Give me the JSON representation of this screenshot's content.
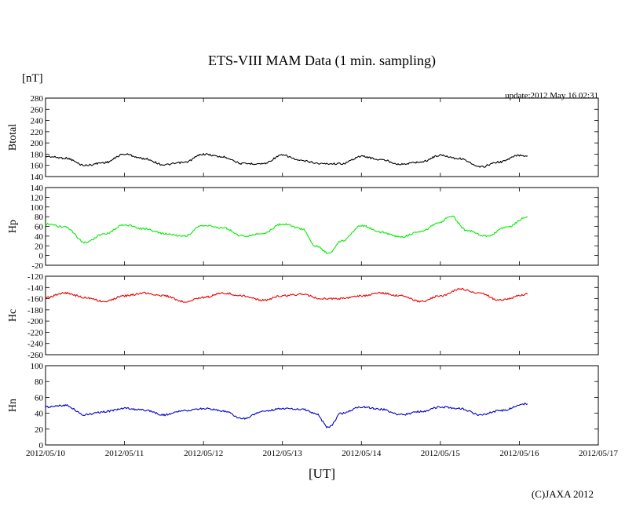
{
  "chart_data": {
    "type": "line",
    "title": "ETS-VIII MAM Data (1 min. sampling)",
    "unit": "[nT]",
    "update": "update:2012 May 16 02:31",
    "copyright": "(C)JAXA 2012",
    "xlabel": "[UT]",
    "x_ticks": [
      "2012/05/10",
      "2012/05/11",
      "2012/05/12",
      "2012/05/13",
      "2012/05/14",
      "2012/05/15",
      "2012/05/16",
      "2012/05/17"
    ],
    "xlim": [
      "2012/05/10",
      "2012/05/17"
    ],
    "data_end": "2012/05/16 02:31",
    "panels": [
      {
        "name": "Btotal",
        "color": "#000000",
        "ylim": [
          140,
          280
        ],
        "y_ticks": [
          "280",
          "260",
          "240",
          "220",
          "200",
          "180",
          "160",
          "140"
        ],
        "values": [
          {
            "t": "2012/05/10 00:00",
            "v": 176
          },
          {
            "t": "2012/05/10 06:00",
            "v": 173
          },
          {
            "t": "2012/05/10 12:00",
            "v": 160
          },
          {
            "t": "2012/05/10 18:00",
            "v": 165
          },
          {
            "t": "2012/05/11 00:00",
            "v": 180
          },
          {
            "t": "2012/05/11 06:00",
            "v": 172
          },
          {
            "t": "2012/05/11 12:00",
            "v": 161
          },
          {
            "t": "2012/05/11 18:00",
            "v": 165
          },
          {
            "t": "2012/05/12 00:00",
            "v": 180
          },
          {
            "t": "2012/05/12 06:00",
            "v": 175
          },
          {
            "t": "2012/05/12 12:00",
            "v": 163
          },
          {
            "t": "2012/05/12 18:00",
            "v": 163
          },
          {
            "t": "2012/05/13 00:00",
            "v": 178
          },
          {
            "t": "2012/05/13 06:00",
            "v": 168
          },
          {
            "t": "2012/05/13 12:00",
            "v": 163
          },
          {
            "t": "2012/05/13 18:00",
            "v": 163
          },
          {
            "t": "2012/05/14 00:00",
            "v": 176
          },
          {
            "t": "2012/05/14 06:00",
            "v": 170
          },
          {
            "t": "2012/05/14 12:00",
            "v": 162
          },
          {
            "t": "2012/05/14 18:00",
            "v": 166
          },
          {
            "t": "2012/05/15 00:00",
            "v": 178
          },
          {
            "t": "2012/05/15 06:00",
            "v": 172
          },
          {
            "t": "2012/05/15 12:00",
            "v": 157
          },
          {
            "t": "2012/05/15 18:00",
            "v": 166
          },
          {
            "t": "2012/05/16 00:00",
            "v": 178
          },
          {
            "t": "2012/05/16 02:30",
            "v": 177
          }
        ]
      },
      {
        "name": "Hp",
        "color": "#00ee00",
        "ylim": [
          -20,
          140
        ],
        "y_ticks": [
          "140",
          "120",
          "100",
          "80",
          "60",
          "40",
          "20",
          "0",
          "-20"
        ],
        "values": [
          {
            "t": "2012/05/10 00:00",
            "v": 65
          },
          {
            "t": "2012/05/10 06:00",
            "v": 58
          },
          {
            "t": "2012/05/10 12:00",
            "v": 27
          },
          {
            "t": "2012/05/10 18:00",
            "v": 45
          },
          {
            "t": "2012/05/11 00:00",
            "v": 63
          },
          {
            "t": "2012/05/11 06:00",
            "v": 55
          },
          {
            "t": "2012/05/11 12:00",
            "v": 45
          },
          {
            "t": "2012/05/11 18:00",
            "v": 40
          },
          {
            "t": "2012/05/12 00:00",
            "v": 62
          },
          {
            "t": "2012/05/12 06:00",
            "v": 57
          },
          {
            "t": "2012/05/12 12:00",
            "v": 40
          },
          {
            "t": "2012/05/12 18:00",
            "v": 45
          },
          {
            "t": "2012/05/13 00:00",
            "v": 65
          },
          {
            "t": "2012/05/13 06:00",
            "v": 55
          },
          {
            "t": "2012/05/13 10:00",
            "v": 20
          },
          {
            "t": "2012/05/13 14:00",
            "v": 5
          },
          {
            "t": "2012/05/13 18:00",
            "v": 30
          },
          {
            "t": "2012/05/14 00:00",
            "v": 62
          },
          {
            "t": "2012/05/14 06:00",
            "v": 48
          },
          {
            "t": "2012/05/14 12:00",
            "v": 38
          },
          {
            "t": "2012/05/14 18:00",
            "v": 50
          },
          {
            "t": "2012/05/15 00:00",
            "v": 68
          },
          {
            "t": "2012/05/15 03:00",
            "v": 82
          },
          {
            "t": "2012/05/15 08:00",
            "v": 52
          },
          {
            "t": "2012/05/15 14:00",
            "v": 40
          },
          {
            "t": "2012/05/15 20:00",
            "v": 58
          },
          {
            "t": "2012/05/16 02:30",
            "v": 80
          }
        ]
      },
      {
        "name": "Hc",
        "color": "#ee0000",
        "ylim": [
          -260,
          -120
        ],
        "y_ticks": [
          "-120",
          "-140",
          "-160",
          "-180",
          "-200",
          "-220",
          "-240",
          "-260"
        ],
        "values": [
          {
            "t": "2012/05/10 00:00",
            "v": -158
          },
          {
            "t": "2012/05/10 06:00",
            "v": -150
          },
          {
            "t": "2012/05/10 12:00",
            "v": -158
          },
          {
            "t": "2012/05/10 18:00",
            "v": -165
          },
          {
            "t": "2012/05/11 00:00",
            "v": -155
          },
          {
            "t": "2012/05/11 06:00",
            "v": -150
          },
          {
            "t": "2012/05/11 12:00",
            "v": -155
          },
          {
            "t": "2012/05/11 18:00",
            "v": -165
          },
          {
            "t": "2012/05/12 00:00",
            "v": -158
          },
          {
            "t": "2012/05/12 06:00",
            "v": -150
          },
          {
            "t": "2012/05/12 12:00",
            "v": -155
          },
          {
            "t": "2012/05/12 18:00",
            "v": -163
          },
          {
            "t": "2012/05/13 00:00",
            "v": -155
          },
          {
            "t": "2012/05/13 06:00",
            "v": -152
          },
          {
            "t": "2012/05/13 12:00",
            "v": -160
          },
          {
            "t": "2012/05/13 18:00",
            "v": -160
          },
          {
            "t": "2012/05/14 00:00",
            "v": -155
          },
          {
            "t": "2012/05/14 06:00",
            "v": -150
          },
          {
            "t": "2012/05/14 12:00",
            "v": -155
          },
          {
            "t": "2012/05/14 18:00",
            "v": -165
          },
          {
            "t": "2012/05/15 00:00",
            "v": -155
          },
          {
            "t": "2012/05/15 06:00",
            "v": -143
          },
          {
            "t": "2012/05/15 12:00",
            "v": -150
          },
          {
            "t": "2012/05/15 18:00",
            "v": -163
          },
          {
            "t": "2012/05/16 02:30",
            "v": -152
          }
        ]
      },
      {
        "name": "Hn",
        "color": "#0000cc",
        "ylim": [
          0,
          100
        ],
        "y_ticks": [
          "100",
          "80",
          "60",
          "40",
          "20",
          "0"
        ],
        "values": [
          {
            "t": "2012/05/10 00:00",
            "v": 48
          },
          {
            "t": "2012/05/10 06:00",
            "v": 50
          },
          {
            "t": "2012/05/10 12:00",
            "v": 38
          },
          {
            "t": "2012/05/10 18:00",
            "v": 42
          },
          {
            "t": "2012/05/11 00:00",
            "v": 46
          },
          {
            "t": "2012/05/11 06:00",
            "v": 44
          },
          {
            "t": "2012/05/11 12:00",
            "v": 38
          },
          {
            "t": "2012/05/11 18:00",
            "v": 43
          },
          {
            "t": "2012/05/12 00:00",
            "v": 46
          },
          {
            "t": "2012/05/12 06:00",
            "v": 43
          },
          {
            "t": "2012/05/12 12:00",
            "v": 33
          },
          {
            "t": "2012/05/12 18:00",
            "v": 42
          },
          {
            "t": "2012/05/13 00:00",
            "v": 46
          },
          {
            "t": "2012/05/13 06:00",
            "v": 45
          },
          {
            "t": "2012/05/13 10:00",
            "v": 40
          },
          {
            "t": "2012/05/13 14:00",
            "v": 22
          },
          {
            "t": "2012/05/13 18:00",
            "v": 40
          },
          {
            "t": "2012/05/14 00:00",
            "v": 48
          },
          {
            "t": "2012/05/14 06:00",
            "v": 45
          },
          {
            "t": "2012/05/14 12:00",
            "v": 38
          },
          {
            "t": "2012/05/14 18:00",
            "v": 42
          },
          {
            "t": "2012/05/15 00:00",
            "v": 48
          },
          {
            "t": "2012/05/15 06:00",
            "v": 46
          },
          {
            "t": "2012/05/15 12:00",
            "v": 38
          },
          {
            "t": "2012/05/15 18:00",
            "v": 43
          },
          {
            "t": "2012/05/16 02:30",
            "v": 52
          }
        ]
      }
    ]
  }
}
